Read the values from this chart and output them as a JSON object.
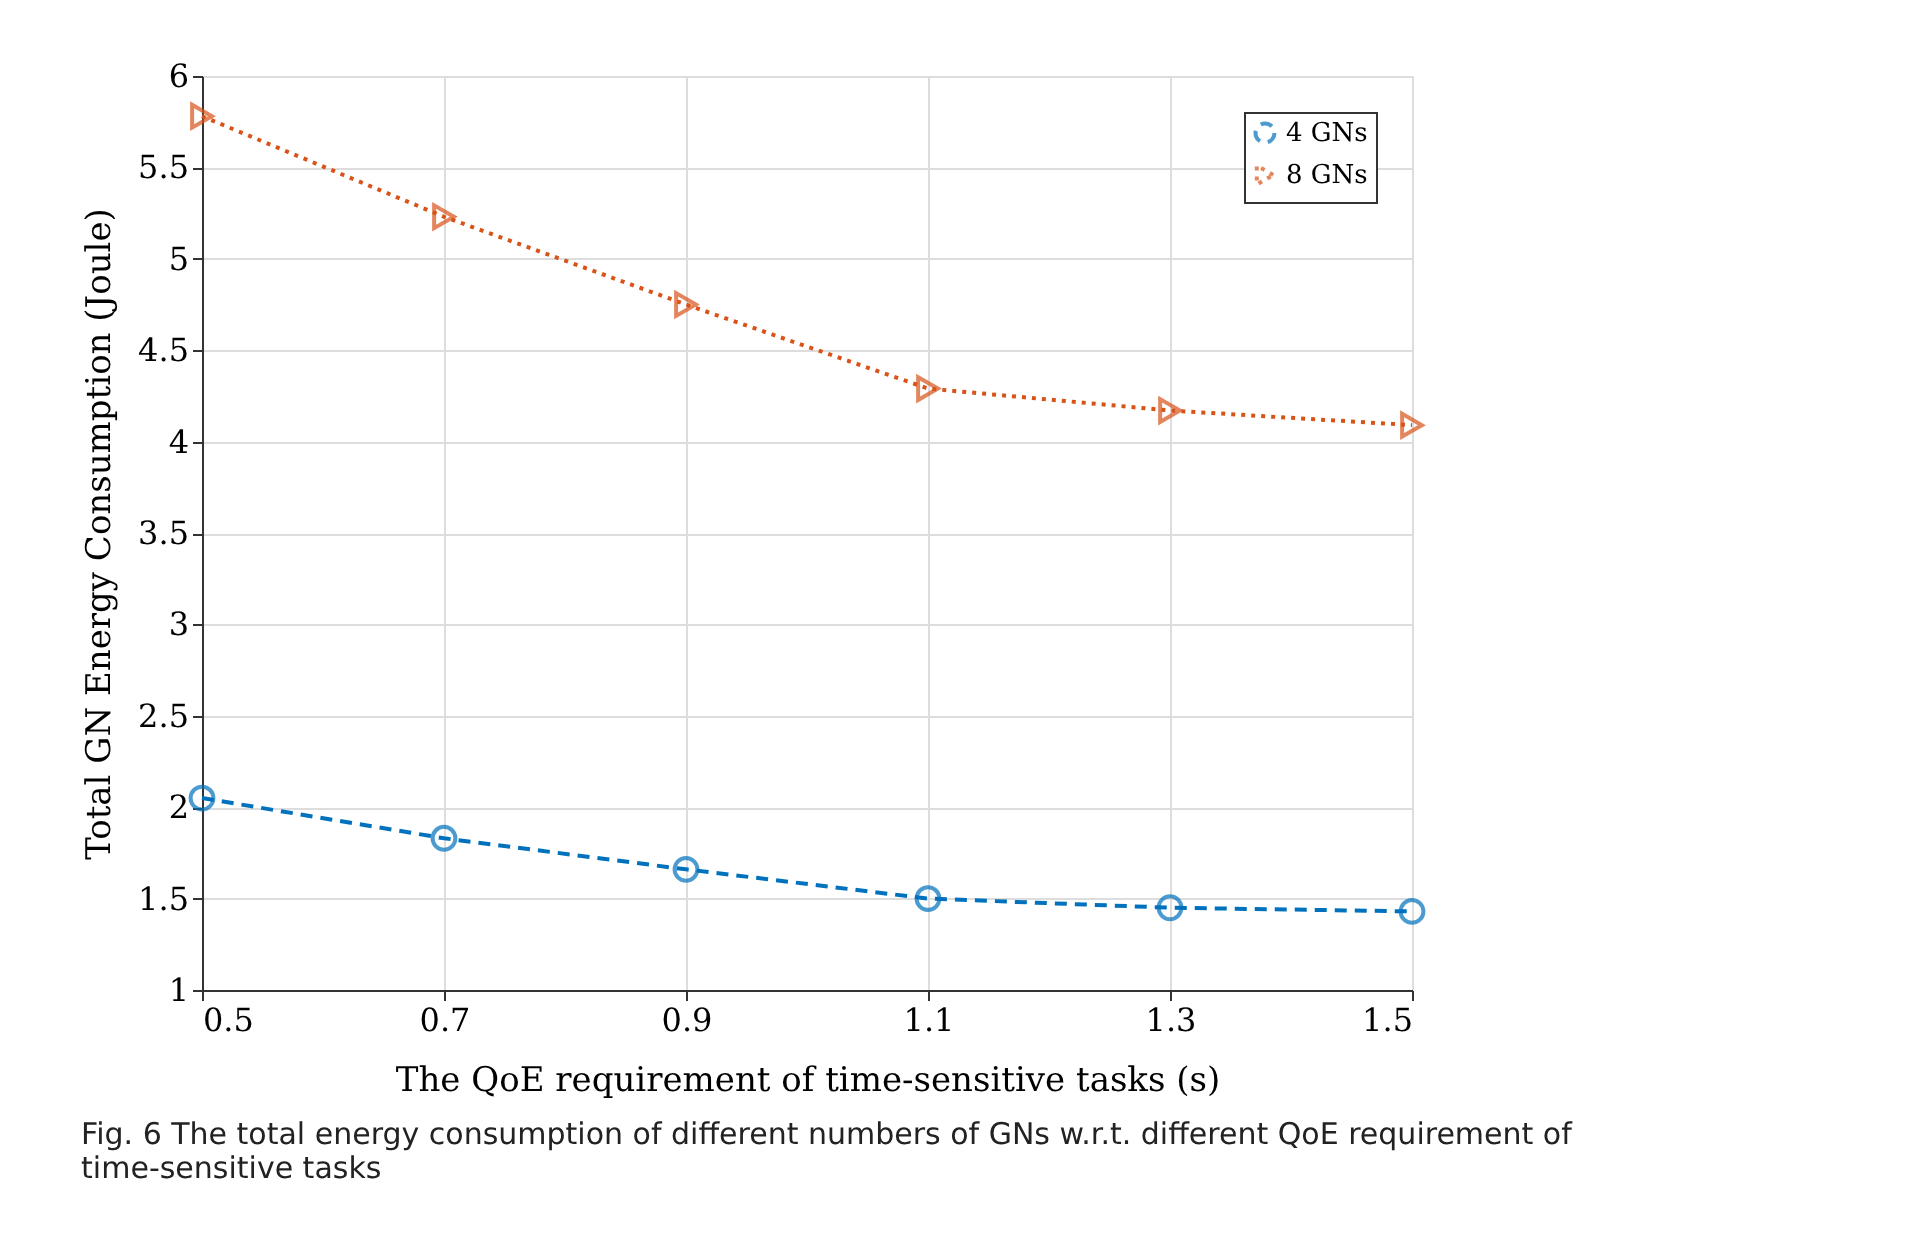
{
  "chart_data": {
    "type": "line",
    "xlabel": "The QoE requirement of time-sensitive tasks (s)",
    "ylabel": "Total GN Energy Consumption (Joule)",
    "x": [
      0.5,
      0.7,
      0.9,
      1.1,
      1.3,
      1.5
    ],
    "series": [
      {
        "name": "4 GNs",
        "color": "#0072bd",
        "values": [
          2.05,
          1.83,
          1.66,
          1.5,
          1.45,
          1.43
        ],
        "marker": "circle",
        "line_style": "dashed"
      },
      {
        "name": "8 GNs",
        "color": "#d95319",
        "values": [
          5.78,
          5.23,
          4.75,
          4.29,
          4.17,
          4.09
        ],
        "marker": "triangle",
        "line_style": "dotted"
      }
    ],
    "xlim": [
      0.5,
      1.5
    ],
    "xticks": [
      0.5,
      0.7,
      0.9,
      1.1,
      1.3,
      1.5
    ],
    "ylim": [
      1,
      6
    ],
    "yticks": [
      1,
      1.5,
      2,
      2.5,
      3,
      3.5,
      4,
      4.5,
      5,
      5.5,
      6
    ],
    "grid": true,
    "legend": "top right",
    "annotations": [
      "Fig. 6 The total energy consumption of different numbers of GNs w.r.t. different QoE requirement of time-sensitive tasks"
    ]
  }
}
